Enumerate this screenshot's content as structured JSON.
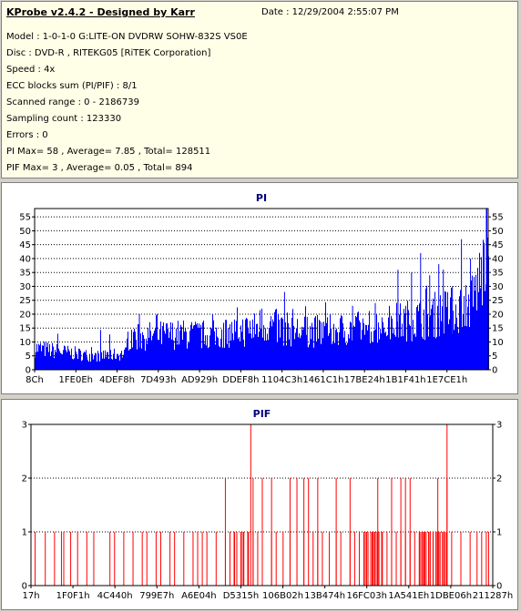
{
  "info": {
    "title": "KProbe v2.4.2 - Designed by Karr",
    "date": "Date : 12/29/2004 2:55:07 PM",
    "lines": [
      "Model : 1-0-1-0 G:LITE-ON DVDRW SOHW-832S  VS0E",
      "Disc : DVD-R , RITEKG05 [RiTEK Corporation]",
      "Speed : 4x",
      "ECC blocks sum (PI/PIF) : 8/1",
      "Scanned range : 0 - 2186739",
      "Sampling count : 123330",
      "Errors : 0",
      "PI Max= 58 , Average= 7.85 , Total= 128511",
      "PIF Max= 3 , Average= 0.05 , Total= 894"
    ]
  },
  "colors": {
    "pi": "#0000ff",
    "pif": "#ff0000",
    "grid": "#000000",
    "title": "#000080"
  },
  "chart_data": [
    {
      "type": "bar",
      "title": "PI",
      "ylim": [
        0,
        58
      ],
      "yticks": [
        0,
        5,
        10,
        15,
        20,
        25,
        30,
        35,
        40,
        45,
        50,
        55
      ],
      "xticks": [
        "8Ch",
        "1FE0Eh",
        "4DEF8h",
        "7D493h",
        "AD929h",
        "DDEF8h",
        "1104C3h",
        "1461C1h",
        "17BE24h",
        "1B1F41h",
        "1E7CE1h"
      ],
      "grid": "dotted-horizontal",
      "profile": [
        [
          0,
          8
        ],
        [
          0.045,
          7
        ],
        [
          0.09,
          6
        ],
        [
          0.13,
          5
        ],
        [
          0.2,
          6
        ],
        [
          0.205,
          12
        ],
        [
          0.3,
          13
        ],
        [
          0.4,
          13
        ],
        [
          0.48,
          15
        ],
        [
          0.5,
          17
        ],
        [
          0.55,
          15
        ],
        [
          0.6,
          14
        ],
        [
          0.7,
          15
        ],
        [
          0.78,
          17
        ],
        [
          0.85,
          19
        ],
        [
          0.9,
          21
        ],
        [
          0.93,
          22
        ],
        [
          0.96,
          25
        ],
        [
          0.98,
          33
        ],
        [
          1.0,
          45
        ]
      ],
      "spikes": [
        [
          0.05,
          13
        ],
        [
          0.23,
          20
        ],
        [
          0.42,
          18
        ],
        [
          0.5,
          22
        ],
        [
          0.55,
          28
        ],
        [
          0.6,
          19
        ],
        [
          0.7,
          23
        ],
        [
          0.75,
          24
        ],
        [
          0.8,
          36
        ],
        [
          0.83,
          35
        ],
        [
          0.85,
          42
        ],
        [
          0.87,
          34
        ],
        [
          0.89,
          38
        ],
        [
          0.9,
          36
        ],
        [
          0.92,
          30
        ],
        [
          0.94,
          47
        ],
        [
          0.96,
          40
        ],
        [
          0.98,
          42
        ],
        [
          0.995,
          58
        ]
      ],
      "average": 7.85,
      "max": 58
    },
    {
      "type": "bar",
      "title": "PIF",
      "ylim": [
        0,
        3
      ],
      "yticks": [
        0,
        1,
        2,
        3
      ],
      "xticks": [
        "17h",
        "1F0F1h",
        "4C440h",
        "799E7h",
        "A6E04h",
        "D5315h",
        "106B02h",
        "13B474h",
        "16FC03h",
        "1A541Eh",
        "1DBE06h",
        "211287h"
      ],
      "grid": "dotted-horizontal",
      "ones": [
        0.008,
        0.03,
        0.05,
        0.065,
        0.07,
        0.085,
        0.1,
        0.12,
        0.135,
        0.17,
        0.18,
        0.2,
        0.22,
        0.24,
        0.25,
        0.27,
        0.28,
        0.3,
        0.31,
        0.33,
        0.35,
        0.36,
        0.37,
        0.38,
        0.4,
        0.42,
        0.44,
        0.46,
        0.47,
        0.48,
        0.49,
        0.5,
        0.52,
        0.53,
        0.545,
        0.56,
        0.575,
        0.59,
        0.61,
        0.62,
        0.63,
        0.645,
        0.66,
        0.67,
        0.69,
        0.7,
        0.71,
        0.72,
        0.74,
        0.75,
        0.76,
        0.77,
        0.78,
        0.79,
        0.8,
        0.81,
        0.82,
        0.83,
        0.84,
        0.85,
        0.86,
        0.87,
        0.88,
        0.885,
        0.89,
        0.9,
        0.91,
        0.93,
        0.95,
        0.965,
        0.975,
        0.985,
        0.99
      ],
      "twos": [
        0.42,
        0.48,
        0.5,
        0.52,
        0.56,
        0.575,
        0.59,
        0.6,
        0.62,
        0.66,
        0.69,
        0.75,
        0.78,
        0.8,
        0.81,
        0.82,
        0.88,
        0.9
      ],
      "threes": [
        0.475,
        0.9
      ],
      "dense": [
        [
          0.43,
          0.47
        ],
        [
          0.84,
          0.9
        ],
        [
          0.72,
          0.76
        ]
      ]
    }
  ]
}
